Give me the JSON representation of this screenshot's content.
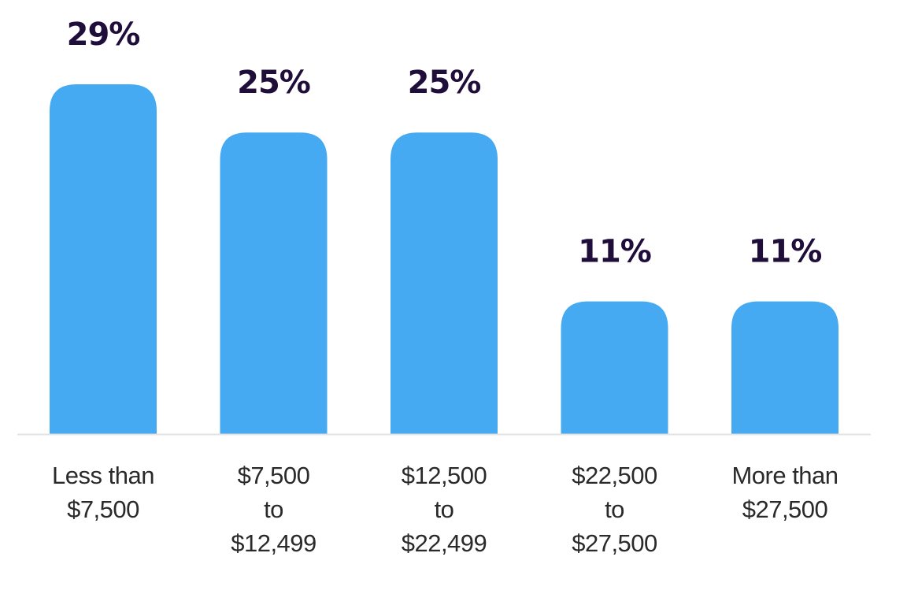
{
  "chart_data": {
    "type": "bar",
    "categories": [
      [
        "Less than",
        "$7,500"
      ],
      [
        "$7,500",
        "to",
        "$12,499"
      ],
      [
        "$12,500",
        "to",
        "$22,499"
      ],
      [
        "$22,500",
        "to",
        "$27,500"
      ],
      [
        "More than",
        "$27,500"
      ]
    ],
    "values": [
      29,
      25,
      25,
      11,
      11
    ],
    "value_labels": [
      "29%",
      "25%",
      "25%",
      "11%",
      "11%"
    ],
    "title": "",
    "xlabel": "",
    "ylabel": "",
    "ylim": [
      0,
      29
    ],
    "grid": false,
    "legend": "none"
  },
  "colors": {
    "bar": "#45aaf2",
    "value_text": "#1f0d3a",
    "category_text": "#2a2a2a",
    "baseline": "#e3e3e3"
  }
}
